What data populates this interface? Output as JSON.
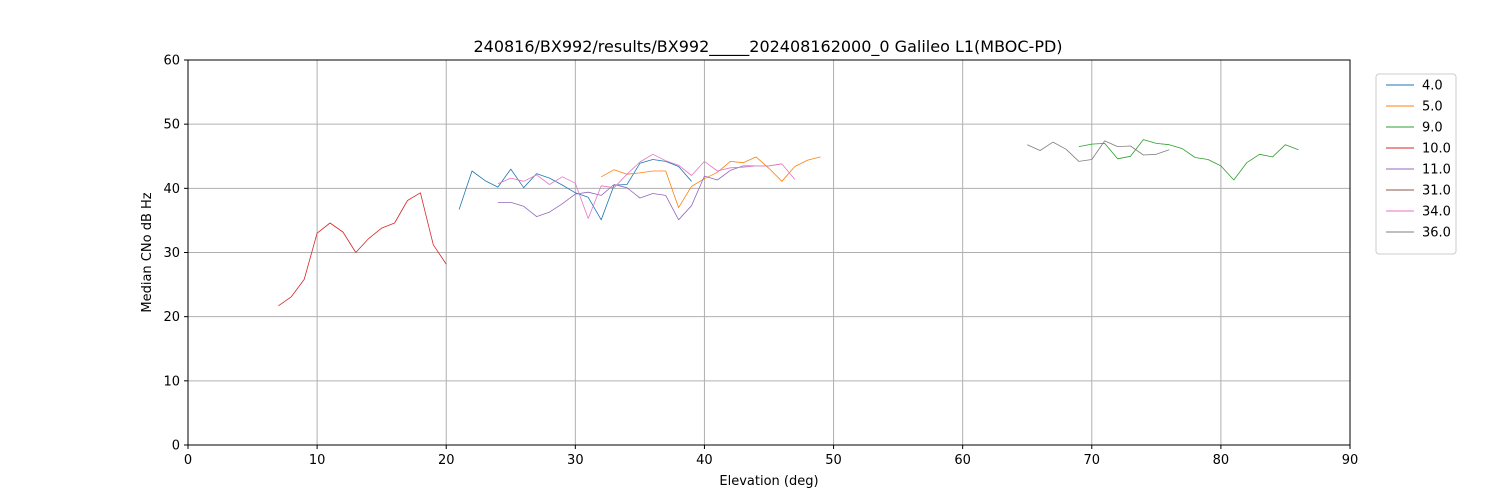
{
  "chart_data": {
    "type": "line",
    "title": "240816/BX992/results/BX992_____202408162000_0 Galileo L1(MBOC-PD)",
    "xlabel": "Elevation (deg)",
    "ylabel": "Median CNo dB Hz",
    "xlim": [
      0,
      90
    ],
    "ylim": [
      0,
      60
    ],
    "xticks": [
      0,
      10,
      20,
      30,
      40,
      50,
      60,
      70,
      80,
      90
    ],
    "yticks": [
      0,
      10,
      20,
      30,
      40,
      50,
      60
    ],
    "grid": true,
    "legend_position": "upper-right-outside",
    "series": [
      {
        "name": "4.0",
        "color": "#1f77b4",
        "x": [
          21,
          22,
          23,
          24,
          25,
          26,
          27,
          28,
          29,
          30,
          31,
          32,
          33,
          34,
          35,
          36,
          37,
          38,
          39
        ],
        "y": [
          36.7,
          42.7,
          41.2,
          40.2,
          43.0,
          40.1,
          42.3,
          41.6,
          40.5,
          39.3,
          38.6,
          35.1,
          40.5,
          40.6,
          43.9,
          44.5,
          44.2,
          43.4,
          41.1
        ]
      },
      {
        "name": "5.0",
        "color": "#ff7f0e",
        "x": [
          32,
          33,
          34,
          35,
          36,
          37,
          38,
          39,
          40,
          41,
          42,
          43,
          44,
          45,
          46,
          47,
          48,
          49
        ],
        "y": [
          41.8,
          42.9,
          42.2,
          42.4,
          42.7,
          42.7,
          37.0,
          40.3,
          41.5,
          42.5,
          44.2,
          44.0,
          44.9,
          43.1,
          41.1,
          43.4,
          44.4,
          44.9
        ]
      },
      {
        "name": "9.0",
        "color": "#2ca02c",
        "x": [
          69,
          70,
          71,
          72,
          73,
          74,
          75,
          76,
          77,
          78,
          79,
          80,
          81,
          82,
          83,
          84,
          85,
          86
        ],
        "y": [
          46.5,
          46.9,
          47.0,
          44.6,
          45.0,
          47.6,
          47.0,
          46.8,
          46.2,
          44.8,
          44.5,
          43.5,
          41.3,
          44.0,
          45.3,
          44.9,
          46.8,
          46.0
        ]
      },
      {
        "name": "10.0",
        "color": "#d62728",
        "x": [
          7,
          8,
          9,
          10,
          11,
          12,
          13,
          14,
          15,
          16,
          17,
          18,
          19,
          20
        ],
        "y": [
          21.7,
          23.1,
          25.8,
          33.0,
          34.6,
          33.2,
          30.0,
          32.2,
          33.8,
          34.6,
          38.1,
          39.3,
          31.2,
          28.2
        ]
      },
      {
        "name": "11.0",
        "color": "#9467bd",
        "x": [
          24,
          25,
          26,
          27,
          28,
          29,
          30,
          31,
          32,
          33,
          34,
          35,
          36,
          37,
          38,
          39,
          40,
          41,
          42,
          43,
          44,
          45,
          46
        ],
        "y": [
          37.8,
          37.8,
          37.2,
          35.6,
          36.3,
          37.6,
          39.1,
          39.4,
          38.9,
          40.6,
          40.1,
          38.5,
          39.2,
          38.9,
          35.1,
          37.3,
          41.9,
          41.3,
          42.8,
          43.5,
          43.5,
          43.5,
          43.8
        ]
      },
      {
        "name": "31.0",
        "color": "#8c564b",
        "x": [],
        "y": []
      },
      {
        "name": "34.0",
        "color": "#e377c2",
        "x": [
          24,
          25,
          26,
          27,
          28,
          29,
          30,
          31,
          32,
          33,
          34,
          35,
          36,
          37,
          38,
          39,
          40,
          41,
          42,
          43,
          44,
          45,
          46,
          47
        ],
        "y": [
          40.7,
          41.6,
          41.1,
          42.1,
          40.6,
          41.8,
          40.8,
          35.3,
          40.4,
          40.1,
          42.2,
          44.1,
          45.3,
          44.3,
          43.6,
          42.0,
          44.2,
          42.7,
          43.2,
          43.3,
          43.5,
          43.5,
          43.8,
          41.4
        ]
      },
      {
        "name": "36.0",
        "color": "#7f7f7f",
        "x": [
          65,
          66,
          67,
          68,
          69,
          70,
          71,
          72,
          73,
          74,
          75,
          76
        ],
        "y": [
          46.8,
          45.9,
          47.2,
          46.1,
          44.2,
          44.5,
          47.4,
          46.5,
          46.6,
          45.2,
          45.3,
          46.0
        ]
      }
    ]
  }
}
